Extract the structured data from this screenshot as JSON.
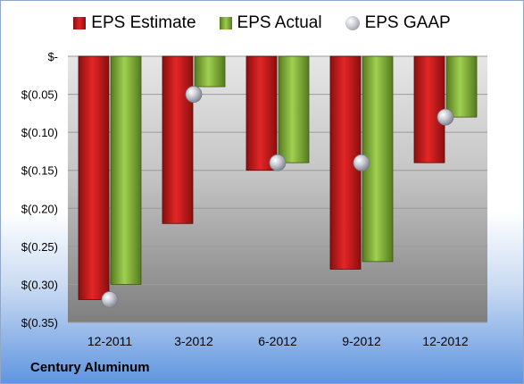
{
  "company": "Century Aluminum",
  "colors": {
    "estimate": "#d42020",
    "actual": "#8dbd3f",
    "gaap": "#b8bcc6"
  },
  "chart_data": {
    "type": "bar",
    "title": "",
    "xlabel": "",
    "ylabel": "",
    "categories": [
      "12-2011",
      "3-2012",
      "6-2012",
      "9-2012",
      "12-2012"
    ],
    "series": [
      {
        "name": "EPS Estimate",
        "kind": "bar",
        "values": [
          -0.32,
          -0.22,
          -0.15,
          -0.28,
          -0.14
        ]
      },
      {
        "name": "EPS Actual",
        "kind": "bar",
        "values": [
          -0.3,
          -0.04,
          -0.14,
          -0.27,
          -0.08
        ]
      },
      {
        "name": "EPS GAAP",
        "kind": "marker",
        "values": [
          -0.32,
          -0.05,
          -0.14,
          -0.14,
          -0.08
        ]
      }
    ],
    "yticks": [
      0,
      -0.05,
      -0.1,
      -0.15,
      -0.2,
      -0.25,
      -0.3,
      -0.35
    ],
    "ytick_labels": [
      "$-",
      "$(0.05)",
      "$(0.10)",
      "$(0.15)",
      "$(0.20)",
      "$(0.25)",
      "$(0.30)",
      "$(0.35)"
    ],
    "ylim": [
      -0.35,
      0
    ],
    "grid": true,
    "legend_position": "top"
  }
}
